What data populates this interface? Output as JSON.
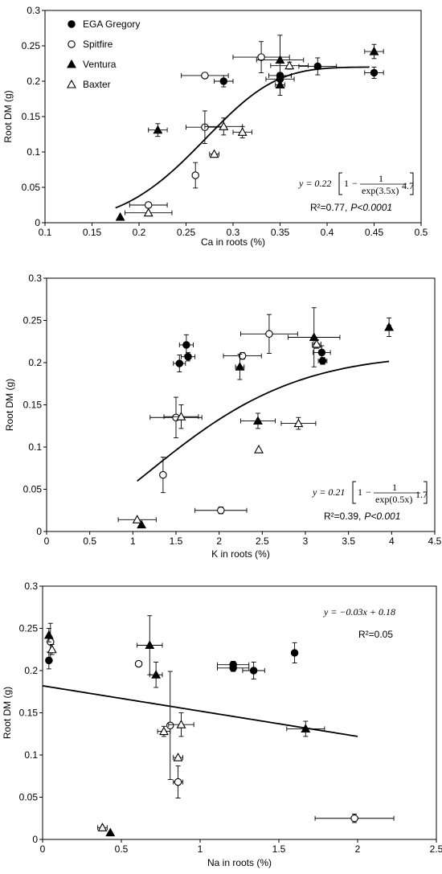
{
  "series_styles": {
    "EGA Gregory": {
      "marker": "circle",
      "fill": "#000000"
    },
    "Spitfire": {
      "marker": "circle",
      "fill": "#ffffff"
    },
    "Ventura": {
      "marker": "triangle",
      "fill": "#000000"
    },
    "Baxter": {
      "marker": "triangle",
      "fill": "#ffffff"
    }
  },
  "chart_data": [
    {
      "type": "scatter",
      "title": "",
      "xlabel": "Ca in roots (%)",
      "ylabel": "Root DM (g)",
      "xlim": [
        0.1,
        0.5
      ],
      "ylim": [
        0,
        0.3
      ],
      "xticks": [
        "0.1",
        "0.15",
        "0.2",
        "0.25",
        "0.3",
        "0.35",
        "0.4",
        "0.45",
        "0.5"
      ],
      "yticks": [
        "0",
        "0.05",
        "0.1",
        "0.15",
        "0.2",
        "0.25",
        "0.3"
      ],
      "legend": {
        "position": "top-left",
        "entries": [
          "EGA Gregory",
          "Spitfire",
          "Ventura",
          "Baxter"
        ]
      },
      "equation": {
        "lhs": "y = 0.22",
        "frac_num": "1",
        "frac_den": "exp(3.5x)",
        "exponent": "4.7"
      },
      "r2_text": "R²=0.77,",
      "p_text": "P<0.0001",
      "fit": {
        "kind": "weibull",
        "a": 0.22,
        "b": 3.5,
        "c": 4.7,
        "x_range": [
          0.175,
          0.445
        ]
      },
      "series": [
        {
          "name": "EGA Gregory",
          "points": [
            {
              "x": 0.29,
              "y": 0.2,
              "xerr": 0.01,
              "yerr": 0.008
            },
            {
              "x": 0.35,
              "y": 0.203,
              "xerr": 0.015,
              "yerr": 0.004
            },
            {
              "x": 0.35,
              "y": 0.208,
              "xerr": 0.012,
              "yerr": 0.004
            },
            {
              "x": 0.39,
              "y": 0.221,
              "xerr": 0.02,
              "yerr": 0.012
            },
            {
              "x": 0.45,
              "y": 0.212,
              "xerr": 0.01,
              "yerr": 0.008
            }
          ]
        },
        {
          "name": "Spitfire",
          "points": [
            {
              "x": 0.27,
              "y": 0.208,
              "xerr": 0.025,
              "yerr": 0.0
            },
            {
              "x": 0.33,
              "y": 0.234,
              "xerr": 0.03,
              "yerr": 0.022
            },
            {
              "x": 0.27,
              "y": 0.135,
              "xerr": 0.02,
              "yerr": 0.023
            },
            {
              "x": 0.26,
              "y": 0.067,
              "xerr": 0.0,
              "yerr": 0.018
            },
            {
              "x": 0.21,
              "y": 0.025,
              "xerr": 0.02,
              "yerr": 0.004
            }
          ]
        },
        {
          "name": "Ventura",
          "points": [
            {
              "x": 0.35,
              "y": 0.23,
              "xerr": 0.025,
              "yerr": 0.035
            },
            {
              "x": 0.35,
              "y": 0.195,
              "xerr": 0.005,
              "yerr": 0.015
            },
            {
              "x": 0.45,
              "y": 0.242,
              "xerr": 0.01,
              "yerr": 0.01
            },
            {
              "x": 0.22,
              "y": 0.131,
              "xerr": 0.01,
              "yerr": 0.009
            },
            {
              "x": 0.18,
              "y": 0.008,
              "xerr": 0.0,
              "yerr": 0.0
            }
          ]
        },
        {
          "name": "Baxter",
          "points": [
            {
              "x": 0.36,
              "y": 0.222,
              "xerr": 0.02,
              "yerr": 0.005
            },
            {
              "x": 0.29,
              "y": 0.136,
              "xerr": 0.02,
              "yerr": 0.012
            },
            {
              "x": 0.31,
              "y": 0.128,
              "xerr": 0.01,
              "yerr": 0.008
            },
            {
              "x": 0.28,
              "y": 0.097,
              "xerr": 0.005,
              "yerr": 0.0
            },
            {
              "x": 0.21,
              "y": 0.014,
              "xerr": 0.025,
              "yerr": 0.0
            }
          ]
        }
      ]
    },
    {
      "type": "scatter",
      "title": "",
      "xlabel": "K in roots (%)",
      "ylabel": "Root DM (g)",
      "xlim": [
        0,
        4.5
      ],
      "ylim": [
        0,
        0.3
      ],
      "xticks": [
        "0",
        "0.5",
        "1",
        "1.5",
        "2",
        "2.5",
        "3",
        "3.5",
        "4",
        "4.5"
      ],
      "yticks": [
        "0",
        "0.05",
        "0.1",
        "0.15",
        "0.2",
        "0.25",
        "0.3"
      ],
      "equation": {
        "lhs": "y = 0.21",
        "frac_num": "1",
        "frac_den": "exp(0.5x)",
        "exponent": "1.7"
      },
      "r2_text": "R²=0.39,",
      "p_text": "P<0.001",
      "fit": {
        "kind": "weibull",
        "a": 0.21,
        "b": 0.5,
        "c": 1.7,
        "x_range": [
          1.05,
          3.97
        ]
      },
      "series": [
        {
          "name": "EGA Gregory",
          "points": [
            {
              "x": 1.62,
              "y": 0.221,
              "xerr": 0.08,
              "yerr": 0.012
            },
            {
              "x": 1.64,
              "y": 0.207,
              "xerr": 0.08,
              "yerr": 0.005
            },
            {
              "x": 1.54,
              "y": 0.199,
              "xerr": 0.07,
              "yerr": 0.01
            },
            {
              "x": 3.19,
              "y": 0.212,
              "xerr": 0.1,
              "yerr": 0.008
            },
            {
              "x": 3.2,
              "y": 0.202,
              "xerr": 0.05,
              "yerr": 0.004
            }
          ]
        },
        {
          "name": "Spitfire",
          "points": [
            {
              "x": 2.27,
              "y": 0.208,
              "xerr": 0.22,
              "yerr": 0.004
            },
            {
              "x": 2.58,
              "y": 0.234,
              "xerr": 0.33,
              "yerr": 0.023
            },
            {
              "x": 1.5,
              "y": 0.135,
              "xerr": 0.3,
              "yerr": 0.024
            },
            {
              "x": 1.35,
              "y": 0.067,
              "xerr": 0.02,
              "yerr": 0.021
            },
            {
              "x": 2.02,
              "y": 0.025,
              "xerr": 0.3,
              "yerr": 0.004
            }
          ]
        },
        {
          "name": "Ventura",
          "points": [
            {
              "x": 3.1,
              "y": 0.23,
              "xerr": 0.3,
              "yerr": 0.035
            },
            {
              "x": 2.24,
              "y": 0.195,
              "xerr": 0.05,
              "yerr": 0.015
            },
            {
              "x": 3.97,
              "y": 0.242,
              "xerr": 0.02,
              "yerr": 0.011
            },
            {
              "x": 2.45,
              "y": 0.131,
              "xerr": 0.2,
              "yerr": 0.009
            },
            {
              "x": 1.1,
              "y": 0.008,
              "xerr": 0.0,
              "yerr": 0.0
            }
          ]
        },
        {
          "name": "Baxter",
          "points": [
            {
              "x": 3.13,
              "y": 0.222,
              "xerr": 0.05,
              "yerr": 0.005
            },
            {
              "x": 1.56,
              "y": 0.136,
              "xerr": 0.2,
              "yerr": 0.014
            },
            {
              "x": 2.92,
              "y": 0.128,
              "xerr": 0.2,
              "yerr": 0.007
            },
            {
              "x": 2.46,
              "y": 0.097,
              "xerr": 0.0,
              "yerr": 0.0
            },
            {
              "x": 1.05,
              "y": 0.014,
              "xerr": 0.22,
              "yerr": 0.0
            }
          ]
        }
      ]
    },
    {
      "type": "scatter",
      "title": "",
      "xlabel": "Na in roots (%)",
      "ylabel": "Root DM (g)",
      "xlim": [
        0,
        2.5
      ],
      "ylim": [
        0,
        0.3
      ],
      "xticks": [
        "0",
        "0.5",
        "1",
        "1.5",
        "2",
        "2.5"
      ],
      "yticks": [
        "0",
        "0.05",
        "0.1",
        "0.15",
        "0.2",
        "0.25",
        "0.3"
      ],
      "equation_text": "y = −0.03x + 0.18",
      "r2_text": "R²=0.05",
      "fit": {
        "kind": "linear",
        "slope": -0.03,
        "intercept": 0.182,
        "x_range": [
          0,
          2.0
        ]
      },
      "series": [
        {
          "name": "EGA Gregory",
          "points": [
            {
              "x": 0.04,
              "y": 0.212,
              "xerr": 0.0,
              "yerr": 0.01
            },
            {
              "x": 1.21,
              "y": 0.203,
              "xerr": 0.1,
              "yerr": 0.004
            },
            {
              "x": 1.21,
              "y": 0.207,
              "xerr": 0.1,
              "yerr": 0.004
            },
            {
              "x": 1.34,
              "y": 0.2,
              "xerr": 0.07,
              "yerr": 0.01
            },
            {
              "x": 1.6,
              "y": 0.221,
              "xerr": 0.0,
              "yerr": 0.012
            }
          ]
        },
        {
          "name": "Spitfire",
          "points": [
            {
              "x": 0.05,
              "y": 0.234,
              "xerr": 0.0,
              "yerr": 0.022
            },
            {
              "x": 0.61,
              "y": 0.208,
              "xerr": 0.0,
              "yerr": 0.0
            },
            {
              "x": 0.81,
              "y": 0.135,
              "xerr": 0.0,
              "yerr": 0.064
            },
            {
              "x": 0.86,
              "y": 0.068,
              "xerr": 0.03,
              "yerr": 0.019
            },
            {
              "x": 1.98,
              "y": 0.025,
              "xerr": 0.25,
              "yerr": 0.005
            }
          ]
        },
        {
          "name": "Ventura",
          "points": [
            {
              "x": 0.04,
              "y": 0.242,
              "xerr": 0.0,
              "yerr": 0.008
            },
            {
              "x": 0.68,
              "y": 0.23,
              "xerr": 0.08,
              "yerr": 0.035
            },
            {
              "x": 0.72,
              "y": 0.195,
              "xerr": 0.04,
              "yerr": 0.015
            },
            {
              "x": 1.67,
              "y": 0.131,
              "xerr": 0.12,
              "yerr": 0.009
            },
            {
              "x": 0.43,
              "y": 0.008,
              "xerr": 0.0,
              "yerr": 0.0
            }
          ]
        },
        {
          "name": "Baxter",
          "points": [
            {
              "x": 0.06,
              "y": 0.225,
              "xerr": 0.0,
              "yerr": 0.006
            },
            {
              "x": 0.88,
              "y": 0.136,
              "xerr": 0.08,
              "yerr": 0.014
            },
            {
              "x": 0.77,
              "y": 0.128,
              "xerr": 0.04,
              "yerr": 0.006
            },
            {
              "x": 0.86,
              "y": 0.097,
              "xerr": 0.03,
              "yerr": 0.0
            },
            {
              "x": 0.38,
              "y": 0.014,
              "xerr": 0.03,
              "yerr": 0.0
            }
          ]
        }
      ]
    }
  ]
}
